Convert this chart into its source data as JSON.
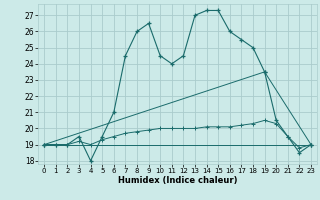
{
  "xlabel": "Humidex (Indice chaleur)",
  "xlim": [
    -0.5,
    23.5
  ],
  "ylim": [
    17.8,
    27.7
  ],
  "yticks": [
    18,
    19,
    20,
    21,
    22,
    23,
    24,
    25,
    26,
    27
  ],
  "xticks": [
    0,
    1,
    2,
    3,
    4,
    5,
    6,
    7,
    8,
    9,
    10,
    11,
    12,
    13,
    14,
    15,
    16,
    17,
    18,
    19,
    20,
    21,
    22,
    23
  ],
  "bg_color": "#cceae8",
  "line_color": "#1a6b6b",
  "grid_color": "#aacccc",
  "line1_x": [
    0,
    1,
    2,
    3,
    4,
    5,
    6,
    7,
    8,
    9,
    10,
    11,
    12,
    13,
    14,
    15,
    16,
    17,
    18,
    19,
    20,
    21,
    22,
    23
  ],
  "line1_y": [
    19,
    19,
    19,
    19.5,
    18,
    19.5,
    21,
    24.5,
    26,
    26.5,
    24.5,
    24,
    24.5,
    27,
    27.3,
    27.3,
    26,
    25.5,
    25,
    23.5,
    20.5,
    19.5,
    18.5,
    19
  ],
  "line2_x": [
    0,
    23
  ],
  "line2_y": [
    19,
    19
  ],
  "line3_x": [
    0,
    19,
    23
  ],
  "line3_y": [
    19,
    23.5,
    19
  ],
  "line4_x": [
    0,
    1,
    2,
    3,
    4,
    5,
    6,
    7,
    8,
    9,
    10,
    11,
    12,
    13,
    14,
    15,
    16,
    17,
    18,
    19,
    20,
    21,
    22,
    23
  ],
  "line4_y": [
    19,
    19,
    19,
    19.2,
    19,
    19.3,
    19.5,
    19.7,
    19.8,
    19.9,
    20.0,
    20.0,
    20.0,
    20.0,
    20.1,
    20.1,
    20.1,
    20.2,
    20.3,
    20.5,
    20.3,
    19.5,
    18.8,
    19
  ]
}
